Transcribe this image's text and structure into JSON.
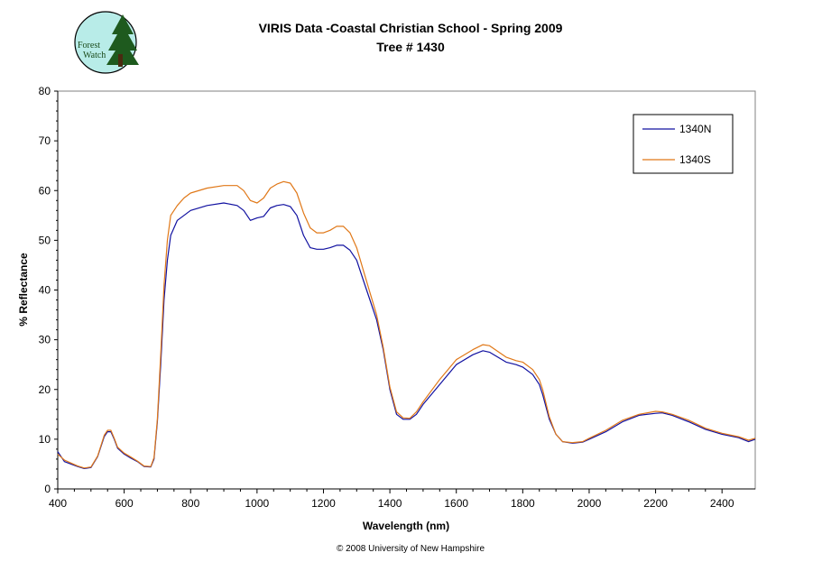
{
  "chart_data": {
    "type": "line",
    "title": "VIRIS Data -Coastal Christian School - Spring 2009",
    "subtitle": "Tree # 1430",
    "xlabel": "Wavelength (nm)",
    "ylabel": "% Reflectance",
    "xlim": [
      400,
      2500
    ],
    "ylim": [
      0,
      80
    ],
    "x_ticks": [
      400,
      600,
      800,
      1000,
      1200,
      1400,
      1600,
      1800,
      2000,
      2200,
      2400
    ],
    "y_ticks": [
      0,
      10,
      20,
      30,
      40,
      50,
      60,
      70,
      80
    ],
    "grid": false,
    "legend_position": "top-right",
    "series": [
      {
        "name": "1340N",
        "color": "#1010a0",
        "x": [
          400,
          420,
          440,
          460,
          480,
          500,
          520,
          540,
          550,
          560,
          570,
          580,
          600,
          620,
          640,
          660,
          680,
          690,
          700,
          710,
          720,
          730,
          740,
          760,
          780,
          800,
          850,
          900,
          940,
          960,
          980,
          1000,
          1020,
          1040,
          1060,
          1080,
          1100,
          1120,
          1140,
          1160,
          1180,
          1200,
          1220,
          1240,
          1260,
          1280,
          1300,
          1320,
          1340,
          1360,
          1380,
          1400,
          1420,
          1440,
          1460,
          1480,
          1500,
          1550,
          1600,
          1650,
          1680,
          1700,
          1750,
          1780,
          1800,
          1830,
          1850,
          1860,
          1880,
          1900,
          1920,
          1950,
          1980,
          2000,
          2050,
          2100,
          2150,
          2200,
          2220,
          2250,
          2300,
          2350,
          2400,
          2450,
          2480,
          2500
        ],
        "values": [
          7.5,
          5.5,
          5,
          4.5,
          4.1,
          4.3,
          6.5,
          10.5,
          11.5,
          11.5,
          10,
          8.2,
          7,
          6.2,
          5.5,
          4.5,
          4.4,
          6,
          13.5,
          25,
          38,
          46,
          51,
          54,
          55,
          56,
          57,
          57.5,
          57,
          56,
          54,
          54.5,
          54.8,
          56.5,
          57,
          57.2,
          56.8,
          55,
          51,
          48.5,
          48.2,
          48.2,
          48.5,
          49,
          49,
          48,
          46,
          42,
          38,
          34,
          28,
          20,
          15,
          14,
          14,
          15,
          17,
          21,
          25,
          27,
          27.8,
          27.5,
          25.5,
          25,
          24.5,
          23,
          21,
          19,
          14,
          11,
          9.5,
          9.2,
          9.4,
          10,
          11.5,
          13.5,
          14.8,
          15.2,
          15.3,
          14.8,
          13.5,
          12,
          11,
          10.3,
          9.5,
          10
        ]
      },
      {
        "name": "1340S",
        "color": "#e07818",
        "x": [
          400,
          420,
          440,
          460,
          480,
          500,
          520,
          540,
          550,
          560,
          570,
          580,
          600,
          620,
          640,
          660,
          680,
          690,
          700,
          710,
          720,
          730,
          740,
          760,
          780,
          800,
          850,
          900,
          940,
          960,
          980,
          1000,
          1020,
          1040,
          1060,
          1080,
          1100,
          1120,
          1140,
          1160,
          1180,
          1200,
          1220,
          1240,
          1260,
          1280,
          1300,
          1320,
          1340,
          1360,
          1380,
          1400,
          1420,
          1440,
          1460,
          1480,
          1500,
          1550,
          1600,
          1650,
          1680,
          1700,
          1750,
          1780,
          1800,
          1830,
          1850,
          1860,
          1880,
          1900,
          1920,
          1950,
          1980,
          2000,
          2050,
          2100,
          2150,
          2200,
          2220,
          2250,
          2300,
          2350,
          2400,
          2450,
          2480,
          2500
        ],
        "values": [
          7,
          5.8,
          5.2,
          4.6,
          4.2,
          4.4,
          6.6,
          10.8,
          11.8,
          11.8,
          10.2,
          8.4,
          7.2,
          6.4,
          5.6,
          4.6,
          4.5,
          6.3,
          14,
          27,
          41,
          50,
          55,
          57,
          58.5,
          59.5,
          60.5,
          61,
          61,
          60,
          58,
          57.5,
          58.5,
          60.5,
          61.3,
          61.8,
          61.5,
          59.5,
          55.5,
          52.5,
          51.5,
          51.5,
          52,
          52.8,
          52.8,
          51.5,
          48.5,
          44,
          39.5,
          35,
          28.5,
          20.5,
          15.5,
          14.3,
          14.2,
          15.5,
          17.5,
          22,
          26,
          28,
          29,
          28.8,
          26.5,
          25.8,
          25.5,
          24,
          22,
          20,
          14.5,
          11,
          9.5,
          9.3,
          9.5,
          10.2,
          11.8,
          13.8,
          15,
          15.6,
          15.5,
          15,
          13.8,
          12.2,
          11.2,
          10.5,
          9.8,
          10.2
        ]
      }
    ]
  },
  "logo": {
    "label": "Forest Watch",
    "line1": "Forest",
    "line2": "Watch"
  },
  "footer": {
    "copyright": "© 2008 University of New Hampshire"
  }
}
